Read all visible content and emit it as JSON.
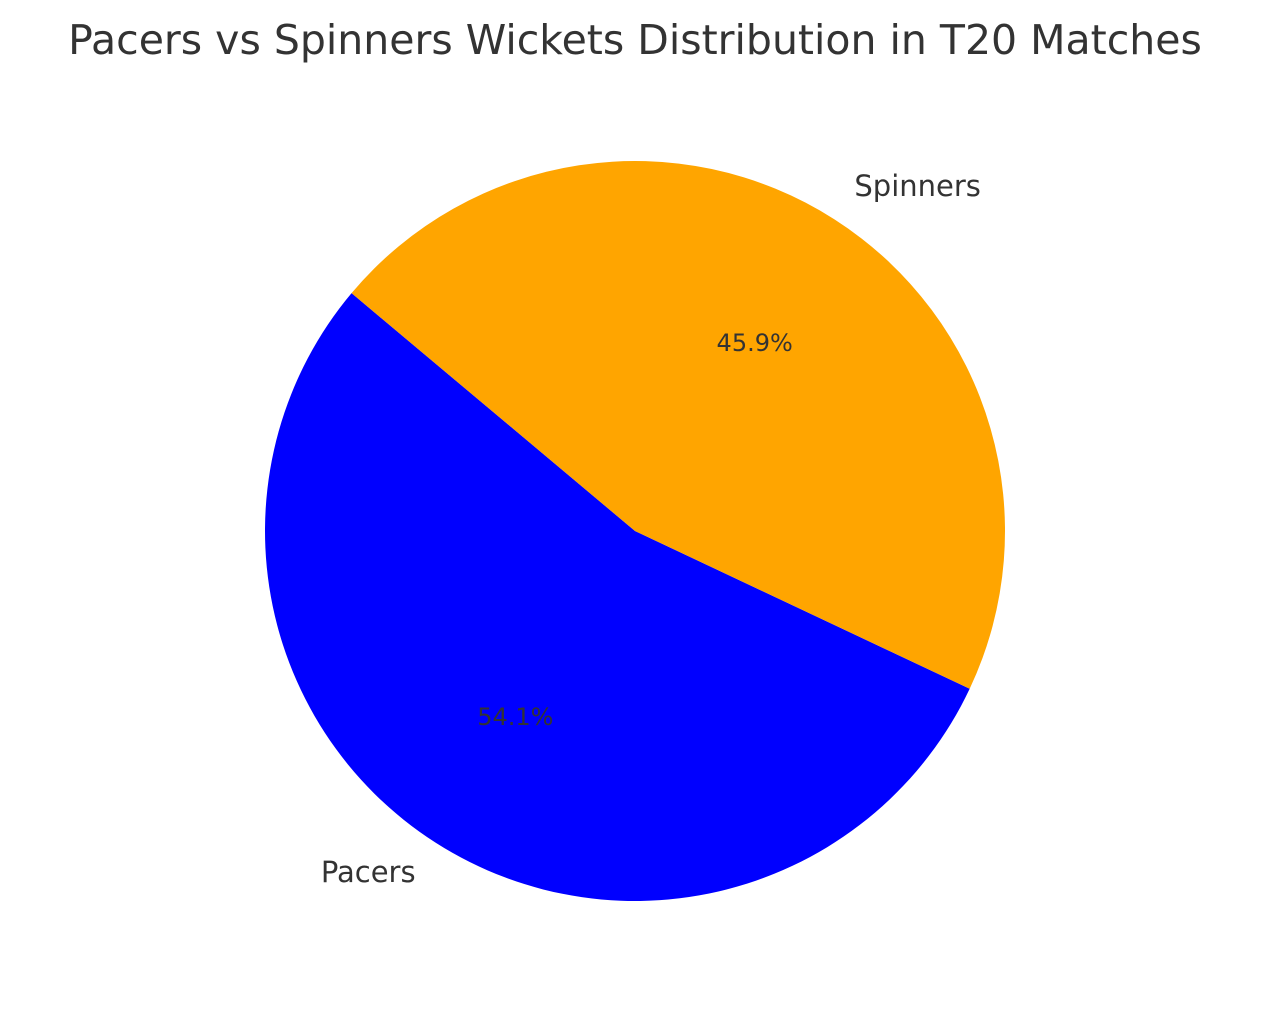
{
  "chart_data": {
    "type": "pie",
    "title": "Pacers vs Spinners Wickets Distribution in T20 Matches",
    "categories": [
      "Pacers",
      "Spinners"
    ],
    "values": [
      54.1,
      45.9
    ],
    "percent_labels": [
      "54.1%",
      "45.9%"
    ],
    "colors": [
      "#0000ff",
      "#ffa500"
    ],
    "start_angle_deg": 140,
    "direction": "counterclockwise"
  }
}
